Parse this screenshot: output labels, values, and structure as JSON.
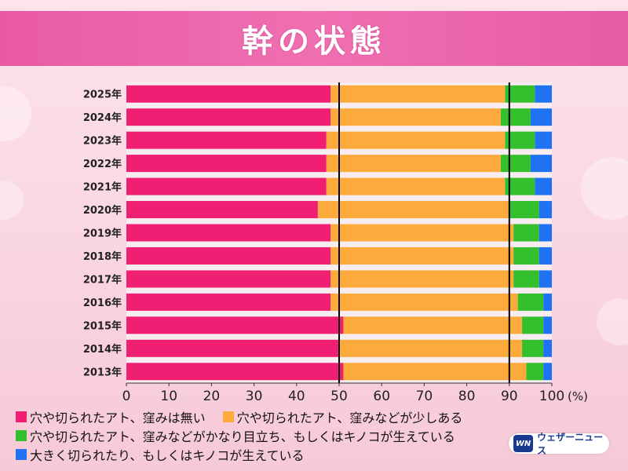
{
  "title": "幹の状態",
  "chart_data": {
    "type": "bar",
    "orientation": "horizontal",
    "stacked": true,
    "categories": [
      "2025年",
      "2024年",
      "2023年",
      "2022年",
      "2021年",
      "2020年",
      "2019年",
      "2018年",
      "2017年",
      "2016年",
      "2015年",
      "2014年",
      "2013年"
    ],
    "series": [
      {
        "name": "穴や切られたアト、窪みは無い",
        "color": "#f01f73",
        "values": [
          48,
          48,
          47,
          47,
          47,
          45,
          48,
          48,
          48,
          48,
          51,
          50,
          51
        ]
      },
      {
        "name": "穴や切られたアト、窪みなどが少しある",
        "color": "#fcaa3c",
        "values": [
          41,
          40,
          42,
          41,
          42,
          45,
          43,
          43,
          43,
          44,
          42,
          43,
          43
        ]
      },
      {
        "name": "穴や切られたアト、窪みなどがかなり目立ち、もしくはキノコが生えている",
        "color": "#33c02c",
        "values": [
          7,
          7,
          7,
          7,
          7,
          7,
          6,
          6,
          6,
          6,
          5,
          5,
          4
        ]
      },
      {
        "name": "大きく切られたり、もしくはキノコが生えている",
        "color": "#1f72f2",
        "values": [
          4,
          5,
          4,
          5,
          4,
          3,
          3,
          3,
          3,
          2,
          2,
          2,
          2
        ]
      }
    ],
    "xlim": [
      0,
      100
    ],
    "x_ticks": [
      0,
      10,
      20,
      30,
      40,
      50,
      60,
      70,
      80,
      90,
      100
    ],
    "x_unit": "(%)",
    "reference_lines": [
      50,
      90
    ],
    "legend_position": "bottom"
  },
  "logo": {
    "mark": "WN",
    "text": "ウェザーニュース"
  }
}
